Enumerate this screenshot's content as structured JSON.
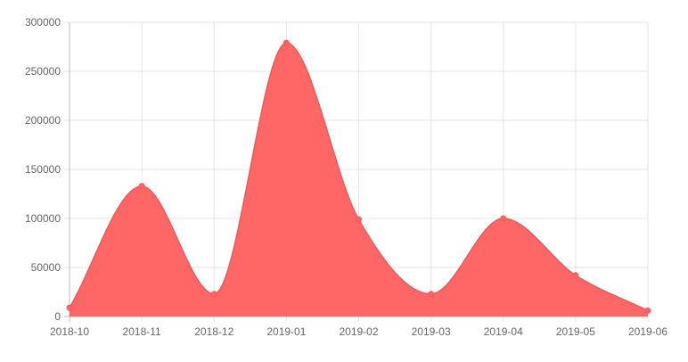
{
  "chart_data": {
    "type": "area",
    "title": "",
    "xlabel": "",
    "ylabel": "",
    "categories": [
      "2018-10",
      "2018-11",
      "2018-12",
      "2019-01",
      "2019-02",
      "2019-03",
      "2019-04",
      "2019-05",
      "2019-06"
    ],
    "series": [
      {
        "values": [
          9000,
          133000,
          23000,
          279000,
          99000,
          23000,
          100000,
          42000,
          6000
        ],
        "color": "#ff6666"
      }
    ],
    "ylim": [
      0,
      300000
    ],
    "yticks": [
      0,
      50000,
      100000,
      150000,
      200000,
      250000,
      300000
    ],
    "ytick_labels": [
      "0",
      "50000",
      "100000",
      "150000",
      "200000",
      "250000",
      "300000"
    ],
    "grid": true,
    "legend": "none"
  }
}
